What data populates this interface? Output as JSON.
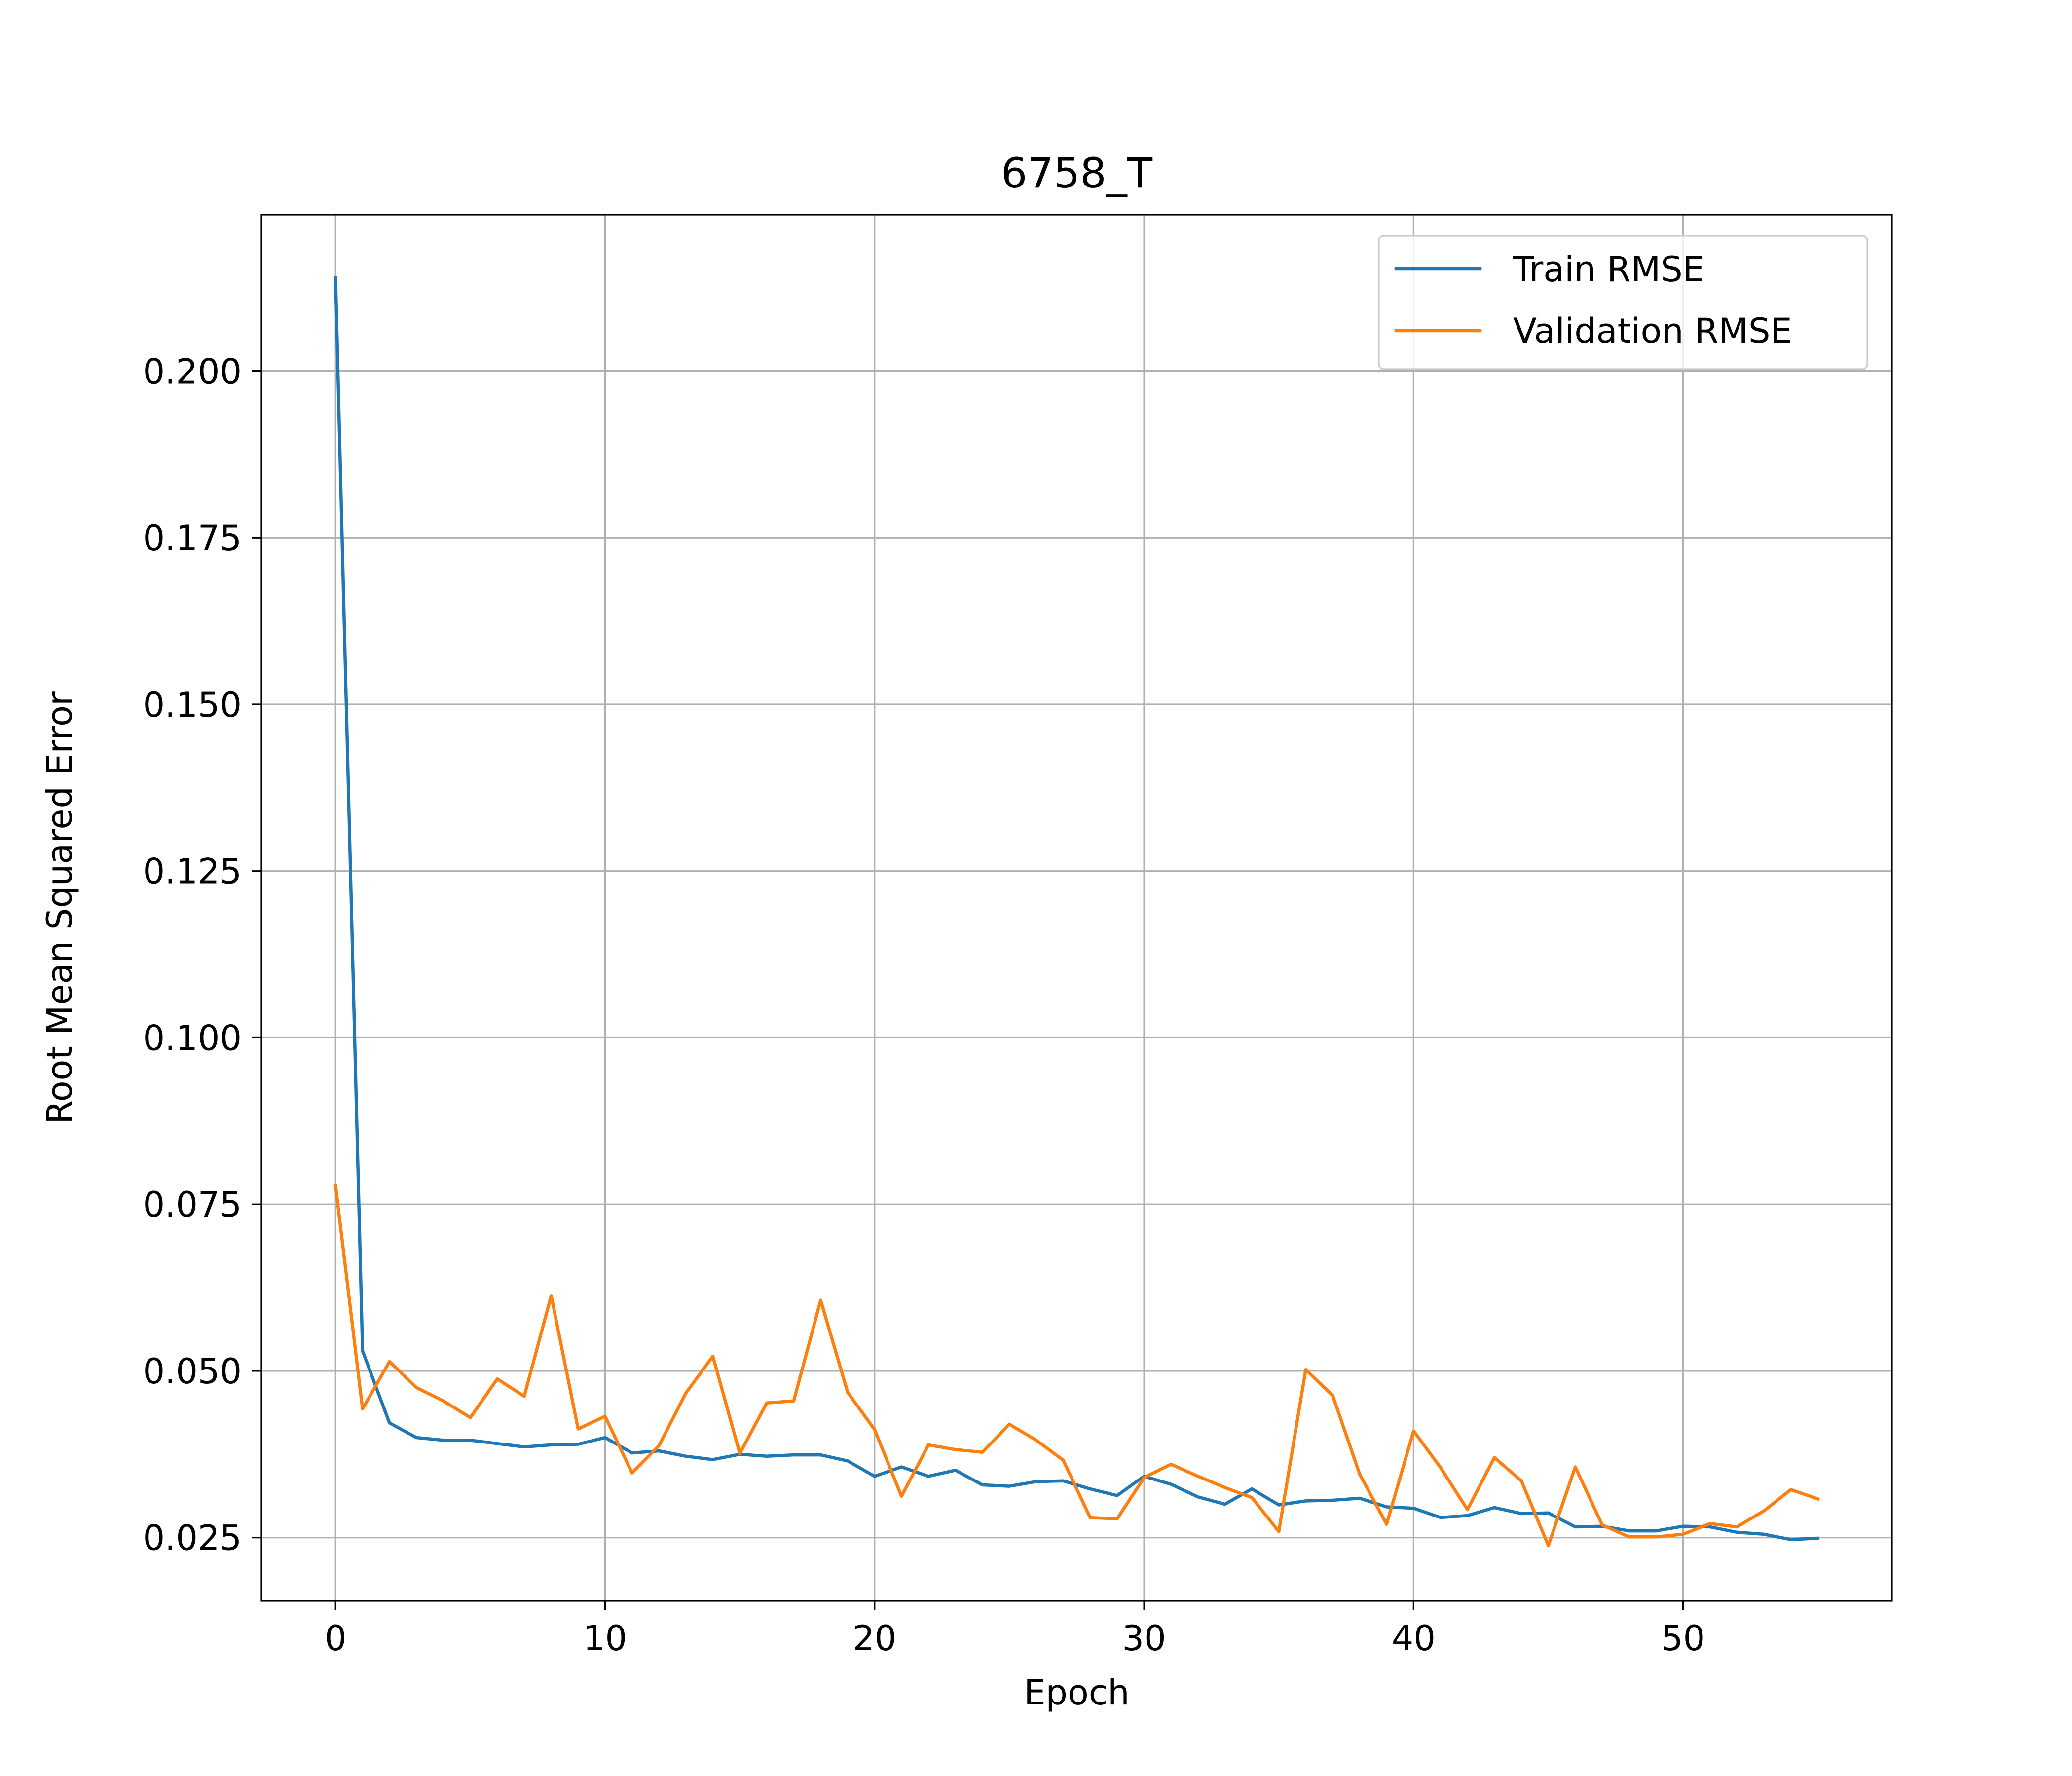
{
  "chart_data": {
    "type": "line",
    "title": "6758_T",
    "xlabel": "Epoch",
    "ylabel": "Root Mean Squared Error",
    "xlim": [
      -2.75,
      57.75
    ],
    "ylim": [
      0.0155,
      0.2235
    ],
    "xticks": [
      0,
      10,
      20,
      30,
      40,
      50
    ],
    "xtick_labels": [
      "0",
      "10",
      "20",
      "30",
      "40",
      "50"
    ],
    "yticks": [
      0.025,
      0.05,
      0.075,
      0.1,
      0.125,
      0.15,
      0.175,
      0.2
    ],
    "ytick_labels": [
      "0.025",
      "0.050",
      "0.075",
      "0.100",
      "0.125",
      "0.150",
      "0.175",
      "0.200"
    ],
    "grid": true,
    "legend_position": "upper right",
    "x": [
      0,
      1,
      2,
      3,
      4,
      5,
      6,
      7,
      8,
      9,
      10,
      11,
      12,
      13,
      14,
      15,
      16,
      17,
      18,
      19,
      20,
      21,
      22,
      23,
      24,
      25,
      26,
      27,
      28,
      29,
      30,
      31,
      32,
      33,
      34,
      35,
      36,
      37,
      38,
      39,
      40,
      41,
      42,
      43,
      44,
      45,
      46,
      47,
      48,
      49,
      50,
      51,
      52,
      53,
      54,
      55
    ],
    "series": [
      {
        "name": "Train RMSE",
        "color": "#1f77b4",
        "values": [
          0.214,
          0.053,
          0.0422,
          0.04,
          0.0396,
          0.0396,
          0.0391,
          0.0386,
          0.0389,
          0.039,
          0.04,
          0.0377,
          0.038,
          0.0372,
          0.0367,
          0.0375,
          0.0372,
          0.0374,
          0.0374,
          0.0365,
          0.0342,
          0.0356,
          0.0342,
          0.0351,
          0.0329,
          0.0327,
          0.0334,
          0.0335,
          0.0323,
          0.0313,
          0.0342,
          0.033,
          0.0311,
          0.03,
          0.0323,
          0.0299,
          0.0305,
          0.0306,
          0.0309,
          0.0296,
          0.0294,
          0.028,
          0.0283,
          0.0295,
          0.0286,
          0.0287,
          0.0266,
          0.0267,
          0.026,
          0.026,
          0.0267,
          0.0266,
          0.0258,
          0.0255,
          0.0247,
          0.0249
        ]
      },
      {
        "name": "Validation RMSE",
        "color": "#ff7f0e",
        "values": [
          0.0778,
          0.0443,
          0.0514,
          0.0475,
          0.0455,
          0.043,
          0.0488,
          0.0462,
          0.0613,
          0.0413,
          0.0432,
          0.0347,
          0.0388,
          0.0467,
          0.0522,
          0.0376,
          0.0452,
          0.0455,
          0.0606,
          0.0468,
          0.0412,
          0.0312,
          0.0389,
          0.0382,
          0.0378,
          0.042,
          0.0396,
          0.0366,
          0.028,
          0.0278,
          0.034,
          0.036,
          0.0342,
          0.0325,
          0.031,
          0.0259,
          0.0502,
          0.0463,
          0.0345,
          0.027,
          0.041,
          0.0355,
          0.0292,
          0.037,
          0.0335,
          0.0238,
          0.0356,
          0.0269,
          0.0251,
          0.0251,
          0.0255,
          0.0271,
          0.0266,
          0.029,
          0.0322,
          0.0308
        ]
      }
    ]
  }
}
